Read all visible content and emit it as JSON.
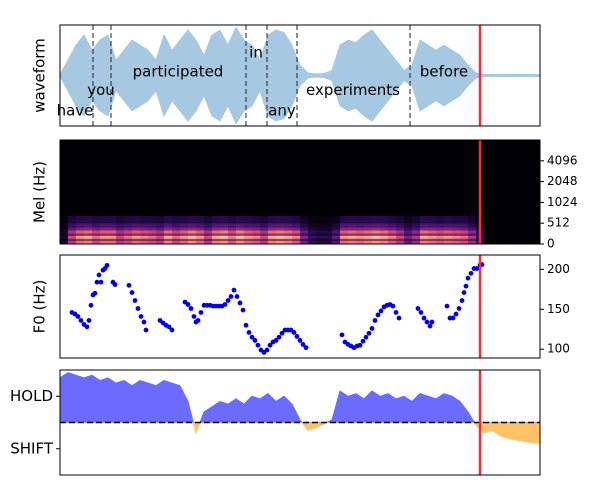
{
  "chart_data": [
    {
      "type": "area",
      "mirror": true,
      "ylabel": "waveform",
      "color": "#a6c8e0",
      "xlim": [
        0,
        480
      ],
      "ylim": [
        -1,
        1
      ],
      "cursor_x": 420,
      "cursor_color": "#ff2a2a",
      "x": [
        0,
        8,
        16,
        24,
        32,
        40,
        48,
        56,
        64,
        72,
        80,
        88,
        96,
        104,
        112,
        120,
        128,
        136,
        144,
        152,
        160,
        168,
        176,
        184,
        192,
        200,
        208,
        216,
        224,
        232,
        240,
        248,
        256,
        264,
        272,
        280,
        288,
        296,
        304,
        312,
        320,
        328,
        336,
        344,
        352,
        360,
        368,
        376,
        384,
        392,
        400,
        408,
        416,
        424,
        432,
        440,
        448,
        456,
        464,
        472,
        480
      ],
      "values": [
        0.02,
        0.3,
        0.6,
        0.8,
        0.5,
        0.7,
        0.8,
        0.3,
        0.5,
        0.7,
        0.6,
        0.5,
        0.3,
        0.8,
        0.5,
        0.7,
        0.9,
        0.7,
        0.4,
        0.8,
        0.9,
        0.6,
        0.95,
        0.7,
        0.6,
        0.3,
        0.8,
        0.9,
        0.85,
        0.6,
        0.2,
        0.05,
        0.03,
        0.04,
        0.1,
        0.6,
        0.7,
        0.65,
        0.8,
        0.9,
        0.7,
        0.5,
        0.3,
        0.1,
        0.2,
        0.7,
        0.6,
        0.5,
        0.6,
        0.5,
        0.4,
        0.2,
        0.05,
        0.02,
        0.02,
        0.02,
        0.02,
        0.02,
        0.02,
        0.02,
        0.02
      ],
      "words": [
        {
          "text": "have",
          "x": 15,
          "y": -0.7
        },
        {
          "text": "you",
          "x": 41,
          "y": -0.3
        },
        {
          "text": "participated",
          "x": 118,
          "y": 0.07
        },
        {
          "text": "in",
          "x": 196,
          "y": 0.45
        },
        {
          "text": "any",
          "x": 222,
          "y": -0.7
        },
        {
          "text": "experiments",
          "x": 293,
          "y": -0.3
        },
        {
          "text": "before",
          "x": 384,
          "y": 0.07
        }
      ],
      "word_boundaries": [
        33,
        51,
        186,
        207,
        237,
        350
      ]
    },
    {
      "type": "heatmap",
      "ylabel": "Mel (Hz)",
      "xlim": [
        0,
        480
      ],
      "ylim": [
        0,
        100
      ],
      "ytick_side": "right",
      "yticks": [
        0,
        {
          "value": 20,
          "label": "512"
        },
        {
          "value": 40,
          "label": "1024"
        },
        {
          "value": 60,
          "label": "2048"
        },
        {
          "value": 80,
          "label": "4096"
        }
      ],
      "cursor_x": 420,
      "cursor_color": "#ff2a2a",
      "x": [
        0,
        8,
        16,
        24,
        32,
        40,
        48,
        56,
        64,
        72,
        80,
        88,
        96,
        104,
        112,
        120,
        128,
        136,
        144,
        152,
        160,
        168,
        176,
        184,
        192,
        200,
        208,
        216,
        224,
        232,
        240,
        248,
        256,
        264,
        272,
        280,
        288,
        296,
        304,
        312,
        320,
        328,
        336,
        344,
        352,
        360,
        368,
        376,
        384,
        392,
        400,
        408,
        416,
        424,
        432,
        440,
        448,
        456,
        464,
        472,
        480
      ],
      "values": [
        0.1,
        0.6,
        0.8,
        0.85,
        0.7,
        0.8,
        0.8,
        0.6,
        0.7,
        0.8,
        0.75,
        0.7,
        0.6,
        0.85,
        0.7,
        0.8,
        0.9,
        0.8,
        0.6,
        0.85,
        0.9,
        0.75,
        0.9,
        0.8,
        0.75,
        0.6,
        0.85,
        0.9,
        0.85,
        0.75,
        0.4,
        0.2,
        0.15,
        0.15,
        0.3,
        0.8,
        0.85,
        0.8,
        0.85,
        0.9,
        0.85,
        0.75,
        0.6,
        0.35,
        0.5,
        0.85,
        0.8,
        0.75,
        0.8,
        0.75,
        0.7,
        0.5,
        0.2,
        0,
        0,
        0,
        0,
        0,
        0,
        0,
        0
      ]
    },
    {
      "type": "scatter",
      "ylabel": "F0 (Hz)",
      "color": "#0000ee",
      "xlim": [
        0,
        480
      ],
      "ylim": [
        89,
        218
      ],
      "ytick_side": "right",
      "yticks": [
        100,
        150,
        200
      ],
      "cursor_x": 420,
      "cursor_color": "#ff2a2a",
      "x": [
        12,
        15,
        18,
        21,
        24,
        27,
        29,
        31,
        33,
        35,
        37,
        39,
        41,
        43,
        45,
        47,
        53,
        55,
        69,
        72,
        75,
        78,
        81,
        84,
        86,
        100,
        103,
        106,
        109,
        112,
        125,
        128,
        131,
        134,
        136,
        138,
        141,
        144,
        147,
        150,
        153,
        156,
        159,
        162,
        165,
        168,
        171,
        174,
        177,
        180,
        183,
        186,
        189,
        192,
        195,
        198,
        201,
        204,
        207,
        210,
        213,
        216,
        219,
        222,
        225,
        228,
        231,
        234,
        237,
        240,
        243,
        246,
        282,
        285,
        288,
        291,
        294,
        297,
        300,
        303,
        306,
        309,
        312,
        315,
        318,
        321,
        324,
        327,
        330,
        333,
        336,
        339,
        358,
        361,
        364,
        367,
        370,
        372,
        387,
        390,
        393,
        396,
        399,
        402,
        404,
        406,
        408,
        411,
        414,
        417,
        420,
        422
      ],
      "values": [
        146,
        144,
        141,
        136,
        131,
        128,
        136,
        155,
        168,
        170,
        184,
        193,
        184,
        199,
        201,
        205,
        184,
        181,
        180,
        171,
        161,
        151,
        141,
        134,
        124,
        136,
        133,
        130,
        128,
        124,
        159,
        156,
        151,
        141,
        134,
        136,
        146,
        155,
        155,
        155,
        154,
        154,
        154,
        154,
        156,
        161,
        166,
        174,
        166,
        158,
        149,
        130,
        121,
        115,
        111,
        105,
        99,
        96,
        99,
        105,
        109,
        111,
        115,
        120,
        124,
        124,
        124,
        121,
        116,
        111,
        106,
        102,
        118,
        109,
        106,
        104,
        102,
        104,
        105,
        110,
        115,
        120,
        126,
        136,
        143,
        148,
        153,
        155,
        156,
        154,
        146,
        139,
        151,
        146,
        139,
        134,
        129,
        134,
        154,
        139,
        139,
        144,
        151,
        161,
        171,
        179,
        189,
        195,
        201,
        201,
        205,
        206
      ]
    },
    {
      "type": "area",
      "color": "#6b6bff",
      "negative_color": "#ffc266",
      "xlim": [
        0,
        480
      ],
      "ylim": [
        -1,
        1
      ],
      "ytick_side": "left",
      "yticks": [
        {
          "value": 0.5,
          "label": "HOLD"
        },
        {
          "value": -0.5,
          "label": "SHIFT"
        }
      ],
      "hline": 0,
      "cursor_x": 420,
      "cursor_color": "#ff2a2a",
      "x": [
        0,
        8,
        16,
        24,
        32,
        40,
        48,
        56,
        64,
        72,
        80,
        88,
        96,
        104,
        112,
        120,
        128,
        136,
        144,
        152,
        160,
        168,
        176,
        184,
        192,
        200,
        208,
        216,
        224,
        232,
        240,
        248,
        256,
        264,
        272,
        280,
        288,
        296,
        304,
        312,
        320,
        328,
        336,
        344,
        352,
        360,
        368,
        376,
        384,
        392,
        400,
        408,
        416,
        424,
        432,
        440,
        448,
        456,
        464,
        472,
        480
      ],
      "values": [
        0.85,
        0.95,
        0.9,
        0.85,
        0.9,
        0.8,
        0.85,
        0.75,
        0.8,
        0.7,
        0.8,
        0.75,
        0.7,
        0.8,
        0.75,
        0.7,
        0.4,
        -0.2,
        0.2,
        0.3,
        0.4,
        0.35,
        0.45,
        0.35,
        0.5,
        0.45,
        0.55,
        0.4,
        0.5,
        0.35,
        0.05,
        -0.15,
        -0.1,
        -0.03,
        0.05,
        0.6,
        0.5,
        0.55,
        0.45,
        0.6,
        0.5,
        0.55,
        0.45,
        0.5,
        0.4,
        0.55,
        0.5,
        0.45,
        0.55,
        0.5,
        0.4,
        0.2,
        -0.05,
        -0.2,
        -0.15,
        -0.25,
        -0.3,
        -0.33,
        -0.36,
        -0.38,
        -0.4
      ]
    }
  ]
}
